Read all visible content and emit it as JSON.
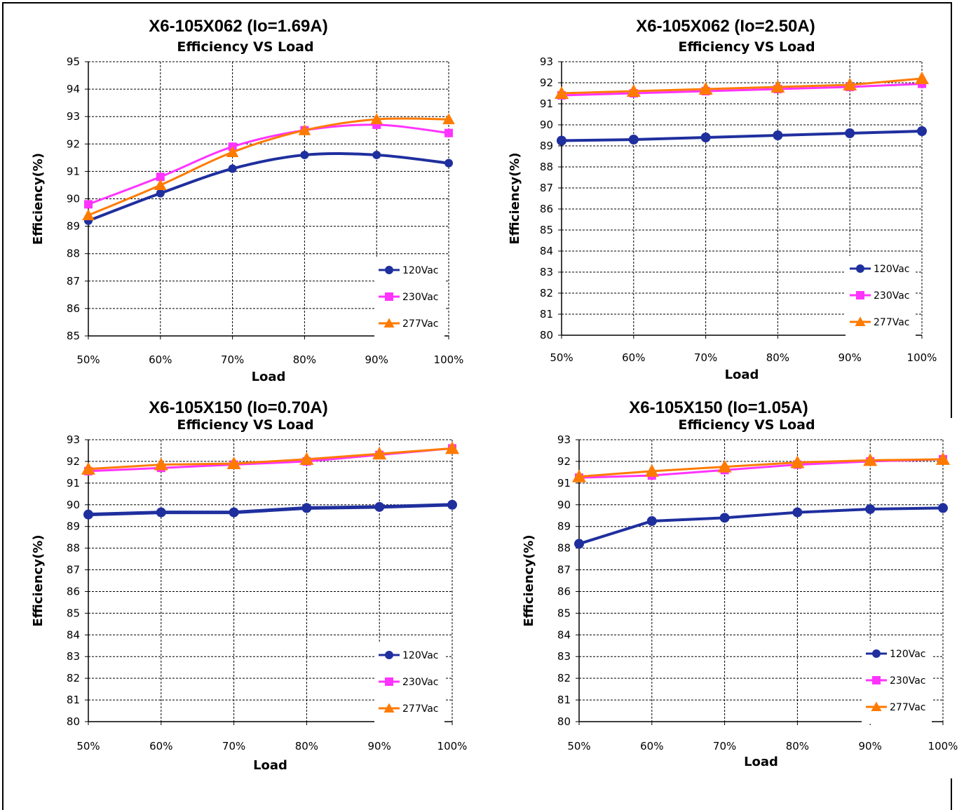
{
  "colors": {
    "s120": "#1f2f9e",
    "s230": "#ff33ff",
    "s277": "#ff7a00",
    "grid": "#000000"
  },
  "chart_data": [
    {
      "type": "line",
      "title": "X6-105X062 (Io=1.69A)",
      "subtitle": "Efficiency VS  Load",
      "xlabel": "Load",
      "ylabel": "Efficiency(%)",
      "categories": [
        "50%",
        "60%",
        "70%",
        "80%",
        "90%",
        "100%"
      ],
      "ylim": [
        85,
        95
      ],
      "yticks": [
        "85",
        "86",
        "87",
        "88",
        "89",
        "90",
        "91",
        "92",
        "93",
        "94",
        "95"
      ],
      "grid": true,
      "smooth": true,
      "legend": "bottom-right",
      "series": [
        {
          "name": "120Vac",
          "marker": "circle",
          "values": [
            89.2,
            90.2,
            91.1,
            91.6,
            91.6,
            91.3
          ]
        },
        {
          "name": "230Vac",
          "marker": "square",
          "values": [
            89.8,
            90.8,
            91.9,
            92.5,
            92.7,
            92.4
          ]
        },
        {
          "name": "277Vac",
          "marker": "triangle",
          "values": [
            89.4,
            90.5,
            91.7,
            92.5,
            92.9,
            92.9
          ]
        }
      ]
    },
    {
      "type": "line",
      "title": "X6-105X062 (Io=2.50A)",
      "subtitle": "Efficiency VS  Load",
      "xlabel": "Load",
      "ylabel": "Efficiency(%)",
      "categories": [
        "50%",
        "60%",
        "70%",
        "80%",
        "90%",
        "100%"
      ],
      "ylim": [
        80,
        93
      ],
      "yticks": [
        "80",
        "81",
        "82",
        "83",
        "84",
        "85",
        "86",
        "87",
        "88",
        "89",
        "90",
        "91",
        "92",
        "93"
      ],
      "grid": true,
      "smooth": false,
      "legend": "bottom-right",
      "series": [
        {
          "name": "120Vac",
          "marker": "circle",
          "values": [
            89.25,
            89.3,
            89.4,
            89.5,
            89.6,
            89.7
          ]
        },
        {
          "name": "230Vac",
          "marker": "square",
          "values": [
            91.4,
            91.5,
            91.6,
            91.7,
            91.8,
            91.95
          ]
        },
        {
          "name": "277Vac",
          "marker": "triangle",
          "values": [
            91.5,
            91.6,
            91.7,
            91.8,
            91.9,
            92.2
          ]
        }
      ]
    },
    {
      "type": "line",
      "title": "X6-105X150 (Io=0.70A)",
      "subtitle": "Efficiency VS  Load",
      "xlabel": "Load",
      "ylabel": "Efficiency(%)",
      "categories": [
        "50%",
        "60%",
        "70%",
        "80%",
        "90%",
        "100%"
      ],
      "ylim": [
        80,
        93
      ],
      "yticks": [
        "80",
        "81",
        "82",
        "83",
        "84",
        "85",
        "86",
        "87",
        "88",
        "89",
        "90",
        "91",
        "92",
        "93"
      ],
      "grid": true,
      "smooth": false,
      "legend": "bottom-right",
      "series": [
        {
          "name": "120Vac",
          "marker": "circle",
          "values": [
            89.55,
            89.65,
            89.65,
            89.85,
            89.9,
            90.0
          ]
        },
        {
          "name": "230Vac",
          "marker": "square",
          "values": [
            91.55,
            91.7,
            91.85,
            92.0,
            92.3,
            92.6
          ]
        },
        {
          "name": "277Vac",
          "marker": "triangle",
          "values": [
            91.65,
            91.85,
            91.9,
            92.1,
            92.35,
            92.6
          ]
        }
      ]
    },
    {
      "type": "line",
      "title": "X6-105X150 (Io=1.05A)",
      "subtitle": "Efficiency VS  Load",
      "xlabel": "Load",
      "ylabel": "Efficiency(%)",
      "categories": [
        "50%",
        "60%",
        "70%",
        "80%",
        "90%",
        "100%"
      ],
      "ylim": [
        80,
        93
      ],
      "yticks": [
        "80",
        "81",
        "82",
        "83",
        "84",
        "85",
        "86",
        "87",
        "88",
        "89",
        "90",
        "91",
        "92",
        "93"
      ],
      "grid": true,
      "smooth": false,
      "legend": "bottom-right",
      "series": [
        {
          "name": "120Vac",
          "marker": "circle",
          "values": [
            88.2,
            89.25,
            89.4,
            89.65,
            89.8,
            89.85
          ]
        },
        {
          "name": "230Vac",
          "marker": "square",
          "values": [
            91.25,
            91.35,
            91.6,
            91.85,
            92.0,
            92.1
          ]
        },
        {
          "name": "277Vac",
          "marker": "triangle",
          "values": [
            91.3,
            91.55,
            91.75,
            91.95,
            92.05,
            92.1
          ]
        }
      ]
    }
  ]
}
